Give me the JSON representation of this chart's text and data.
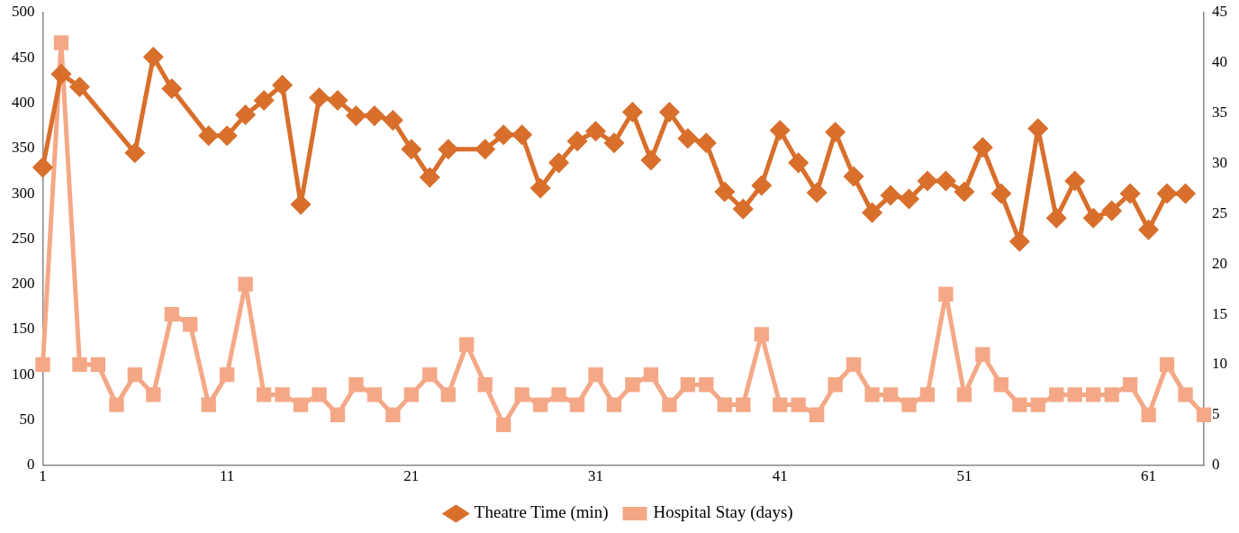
{
  "chart_data": {
    "type": "line",
    "categories": [
      "1",
      null,
      null,
      null,
      null,
      null,
      null,
      null,
      null,
      null,
      "11",
      null,
      null,
      null,
      null,
      null,
      null,
      null,
      null,
      null,
      "21",
      null,
      null,
      null,
      null,
      null,
      null,
      null,
      null,
      null,
      "31",
      null,
      null,
      null,
      null,
      null,
      null,
      null,
      null,
      null,
      "41",
      null,
      null,
      null,
      null,
      null,
      null,
      null,
      null,
      null,
      "51",
      null,
      null,
      null,
      null,
      null,
      null,
      null,
      null,
      null,
      "61",
      null,
      null,
      null
    ],
    "series": [
      {
        "name": "Theatre Time (min)",
        "color": "#d86f2b",
        "marker": "diamond",
        "values": [
          329,
          432,
          418,
          null,
          null,
          345,
          451,
          416,
          null,
          364,
          364,
          387,
          403,
          420,
          288,
          406,
          403,
          386,
          386,
          381,
          349,
          318,
          349,
          null,
          349,
          365,
          365,
          306,
          334,
          358,
          369,
          356,
          390,
          337,
          390,
          361,
          356,
          302,
          283,
          309,
          370,
          334,
          301,
          368,
          319,
          279,
          298,
          294,
          314,
          314,
          302,
          351,
          300,
          247,
          372,
          273,
          314,
          273,
          281,
          300,
          260,
          300,
          300,
          null
        ]
      },
      {
        "name": "Hospital Stay (days)",
        "color": "#f4a886",
        "marker": "square",
        "axis": "y2",
        "values": [
          10,
          42,
          10,
          10,
          6,
          9,
          7,
          15,
          14,
          6,
          9,
          18,
          7,
          7,
          6,
          7,
          5,
          8,
          7,
          5,
          7,
          9,
          7,
          12,
          8,
          4,
          7,
          6,
          7,
          6,
          9,
          6,
          8,
          9,
          6,
          8,
          8,
          6,
          6,
          13,
          6,
          6,
          5,
          8,
          10,
          7,
          7,
          6,
          7,
          17,
          7,
          11,
          8,
          6,
          6,
          7,
          7,
          7,
          7,
          8,
          5,
          10,
          7,
          5
        ]
      }
    ],
    "ylim": [
      0,
      500
    ],
    "yticks": [
      0,
      50,
      100,
      150,
      200,
      250,
      300,
      350,
      400,
      450,
      500
    ],
    "y2lim": [
      0,
      45
    ],
    "y2ticks": [
      0,
      5,
      10,
      15,
      20,
      25,
      30,
      35,
      40,
      45
    ],
    "grid": false,
    "legend": "bottom",
    "line_style": "solid"
  }
}
